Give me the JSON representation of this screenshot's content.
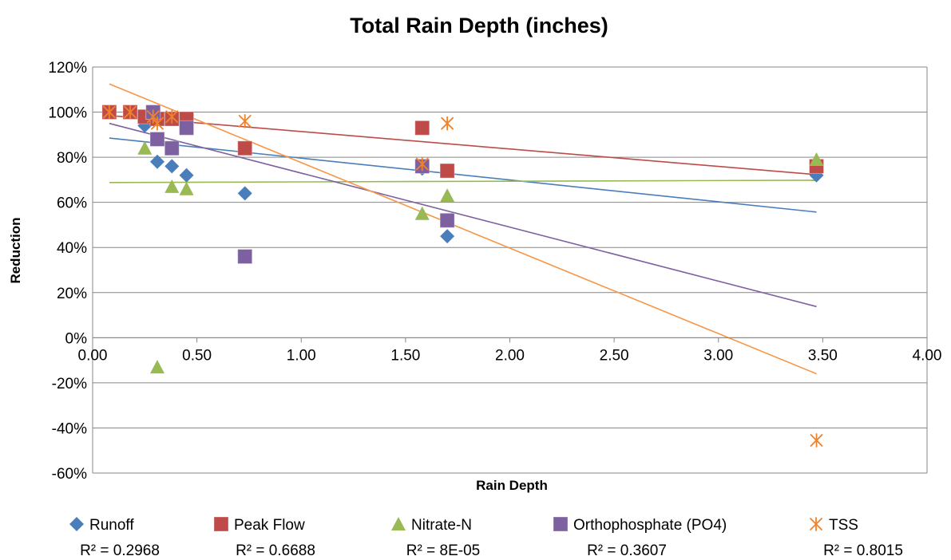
{
  "chart_data": {
    "type": "scatter",
    "title": "Total Rain Depth (inches)",
    "xlabel": "Rain Depth",
    "ylabel": "Reduction",
    "xlim": [
      0,
      4
    ],
    "ylim": [
      -60,
      120
    ],
    "x_ticks": [
      0,
      0.5,
      1,
      1.5,
      2,
      2.5,
      3,
      3.5,
      4
    ],
    "x_tick_labels": [
      "0.00",
      "0.50",
      "1.00",
      "1.50",
      "2.00",
      "2.50",
      "3.00",
      "3.50",
      "4.00"
    ],
    "y_ticks": [
      -60,
      -40,
      -20,
      0,
      20,
      40,
      60,
      80,
      100,
      120
    ],
    "y_tick_labels": [
      "-60%",
      "-40%",
      "-20%",
      "0%",
      "20%",
      "40%",
      "60%",
      "80%",
      "100%",
      "120%"
    ],
    "grid": "horizontal",
    "legend_position": "bottom",
    "series": [
      {
        "name": "Runoff",
        "marker": "diamond",
        "color": "#4a7ebb",
        "line_color": "#4a7ebb",
        "r2_label": "R² = 0.2968",
        "trend": [
          [
            0.08,
            88.5
          ],
          [
            3.47,
            55.7
          ]
        ],
        "points": [
          [
            0.08,
            100
          ],
          [
            0.18,
            100
          ],
          [
            0.25,
            94
          ],
          [
            0.29,
            98
          ],
          [
            0.31,
            78
          ],
          [
            0.38,
            76
          ],
          [
            0.45,
            72
          ],
          [
            0.73,
            64
          ],
          [
            1.58,
            75
          ],
          [
            1.7,
            45
          ],
          [
            3.47,
            72
          ]
        ]
      },
      {
        "name": "Peak Flow",
        "marker": "square",
        "color": "#be4b48",
        "line_color": "#be4b48",
        "r2_label": "R² = 0.6688",
        "trend": [
          [
            0.08,
            98.5
          ],
          [
            3.47,
            72.3
          ]
        ],
        "points": [
          [
            0.08,
            100
          ],
          [
            0.18,
            100
          ],
          [
            0.25,
            98
          ],
          [
            0.29,
            100
          ],
          [
            0.31,
            97
          ],
          [
            0.38,
            97
          ],
          [
            0.45,
            97
          ],
          [
            0.73,
            84
          ],
          [
            1.58,
            93
          ],
          [
            1.7,
            74
          ],
          [
            3.47,
            76
          ]
        ]
      },
      {
        "name": "Nitrate-N",
        "marker": "triangle",
        "color": "#98b954",
        "line_color": "#98b954",
        "r2_label": "R² = 8E-05",
        "trend": [
          [
            0.08,
            68.8
          ],
          [
            3.47,
            69.8
          ]
        ],
        "points": [
          [
            0.25,
            84
          ],
          [
            0.31,
            -13
          ],
          [
            0.38,
            67
          ],
          [
            0.45,
            66
          ],
          [
            1.58,
            55
          ],
          [
            1.7,
            63
          ],
          [
            3.47,
            79
          ]
        ]
      },
      {
        "name": "Orthophosphate (PO4)",
        "marker": "square",
        "color": "#7d60a0",
        "line_color": "#7d60a0",
        "r2_label": "R² = 0.3607",
        "trend": [
          [
            0.08,
            95
          ],
          [
            3.47,
            13.8
          ]
        ],
        "points": [
          [
            0.29,
            100
          ],
          [
            0.31,
            88
          ],
          [
            0.38,
            84
          ],
          [
            0.45,
            93
          ],
          [
            0.73,
            36
          ],
          [
            1.58,
            76
          ],
          [
            1.7,
            52
          ]
        ]
      },
      {
        "name": "TSS",
        "marker": "asterisk",
        "color": "#f0822a",
        "line_color": "#f79646",
        "r2_label": "R² = 0.8015",
        "trend": [
          [
            0.08,
            112.5
          ],
          [
            3.47,
            -16
          ]
        ],
        "points": [
          [
            0.08,
            100
          ],
          [
            0.18,
            100
          ],
          [
            0.29,
            98
          ],
          [
            0.31,
            95
          ],
          [
            0.38,
            98
          ],
          [
            0.73,
            96
          ],
          [
            1.58,
            77
          ],
          [
            1.7,
            95
          ],
          [
            3.47,
            -45.5
          ]
        ]
      }
    ]
  }
}
